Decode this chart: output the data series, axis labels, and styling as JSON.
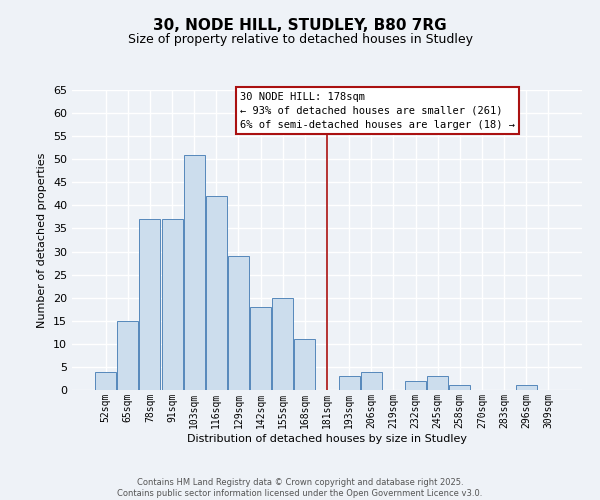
{
  "title": "30, NODE HILL, STUDLEY, B80 7RG",
  "subtitle": "Size of property relative to detached houses in Studley",
  "xlabel": "Distribution of detached houses by size in Studley",
  "ylabel": "Number of detached properties",
  "bar_labels": [
    "52sqm",
    "65sqm",
    "78sqm",
    "91sqm",
    "103sqm",
    "116sqm",
    "129sqm",
    "142sqm",
    "155sqm",
    "168sqm",
    "181sqm",
    "193sqm",
    "206sqm",
    "219sqm",
    "232sqm",
    "245sqm",
    "258sqm",
    "270sqm",
    "283sqm",
    "296sqm",
    "309sqm"
  ],
  "bar_values": [
    4,
    15,
    37,
    37,
    51,
    42,
    29,
    18,
    20,
    11,
    0,
    3,
    4,
    0,
    2,
    3,
    1,
    0,
    0,
    1,
    0
  ],
  "bar_color": "#ccdded",
  "bar_edge_color": "#5588bb",
  "ylim": [
    0,
    65
  ],
  "yticks": [
    0,
    5,
    10,
    15,
    20,
    25,
    30,
    35,
    40,
    45,
    50,
    55,
    60,
    65
  ],
  "vline_index": 10,
  "vline_color": "#aa1111",
  "annotation_title": "30 NODE HILL: 178sqm",
  "annotation_line1": "← 93% of detached houses are smaller (261)",
  "annotation_line2": "6% of semi-detached houses are larger (18) →",
  "footer_line1": "Contains HM Land Registry data © Crown copyright and database right 2025.",
  "footer_line2": "Contains public sector information licensed under the Open Government Licence v3.0.",
  "bg_color": "#eef2f7",
  "grid_color": "#ffffff",
  "title_fontsize": 11,
  "subtitle_fontsize": 9,
  "axis_label_fontsize": 8,
  "tick_fontsize": 7,
  "footer_fontsize": 6
}
